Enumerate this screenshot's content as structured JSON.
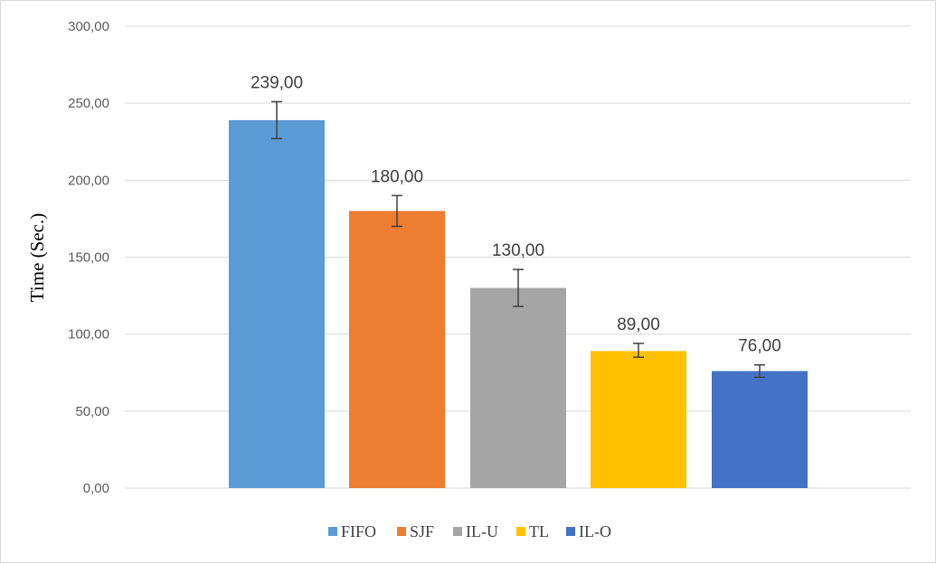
{
  "chart_data": {
    "type": "bar",
    "categories": [
      "FIFO",
      "SJF",
      "IL-U",
      "TL",
      "IL-O"
    ],
    "values": [
      239,
      180,
      130,
      89,
      76
    ],
    "value_labels": [
      "239,00",
      "180,00",
      "130,00",
      "89,00",
      "76,00"
    ],
    "error_bars": [
      {
        "low": 227,
        "high": 251
      },
      {
        "low": 170,
        "high": 190
      },
      {
        "low": 118,
        "high": 142
      },
      {
        "low": 85,
        "high": 94
      },
      {
        "low": 72,
        "high": 80
      }
    ],
    "colors": [
      "#5b9bd5",
      "#ed7d31",
      "#a5a5a5",
      "#ffc000",
      "#4472c4"
    ],
    "ylabel": "Time (Sec.)",
    "ylim": [
      0,
      300
    ],
    "y_ticks": [
      0,
      50,
      100,
      150,
      200,
      250,
      300
    ],
    "y_tick_labels": [
      "0,00",
      "50,00",
      "100,00",
      "150,00",
      "200,00",
      "250,00",
      "300,00"
    ],
    "grid": true,
    "legend_position": "bottom",
    "legend": [
      "FIFO",
      "SJF",
      "IL-U",
      "TL",
      "IL-O"
    ],
    "gridline_color": "#d9d9d9",
    "error_bar_color": "#404040"
  }
}
